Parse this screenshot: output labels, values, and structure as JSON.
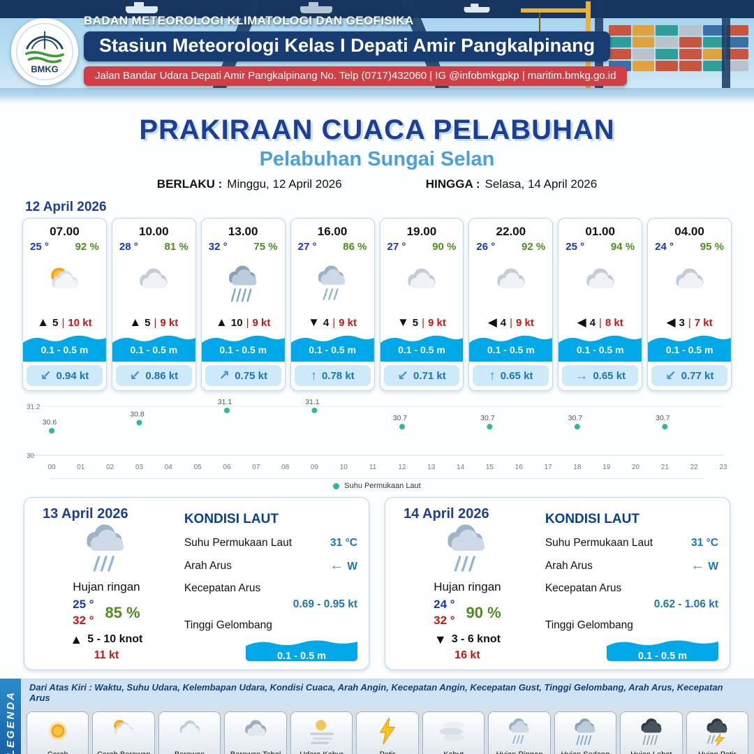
{
  "colors": {
    "navy": "#173c72",
    "titleblue": "#1c3e94",
    "lightblue": "#4aa0dc",
    "red": "#d13f44",
    "green": "#4d8c1f",
    "tempblue": "#1535cc",
    "valred": "#c81414",
    "valblue": "#1b74c0",
    "wave": "#00a8e8",
    "teal": "#2bb9a0"
  },
  "header": {
    "org": "BADAN METEOROLOGI KLIMATOLOGI DAN GEOFISIKA",
    "station": "Stasiun Meteorologi Kelas I Depati Amir Pangkalpinang",
    "address": "Jalan Bandar Udara Depati Amir Pangkalpinang No. Telp (0717)432060 | IG @infobmkgpkp | maritim.bmkg.go.id",
    "logo": "BMKG"
  },
  "title": {
    "main": "PRAKIRAAN CUACA PELABUHAN",
    "subtitle": "Pelabuhan Sungai Selan",
    "berlaku_label": "BERLAKU :",
    "berlaku_value": "Minggu, 12 April 2026",
    "hingga_label": "HINGGA :",
    "hingga_value": "Selasa, 14 April 2026"
  },
  "hourly_date": "12 April 2026",
  "hourly": [
    {
      "time": "07.00",
      "temp": "25 °",
      "rh": "92 %",
      "icon": "cerah-berawan",
      "wind_arrow": "▲",
      "wind": "5",
      "gust": "10 kt",
      "wave": "0.1 - 0.5 m",
      "current_arrow": "↙",
      "current": "0.94 kt"
    },
    {
      "time": "10.00",
      "temp": "28 °",
      "rh": "81 %",
      "icon": "berawan",
      "wind_arrow": "▲",
      "wind": "5",
      "gust": "9 kt",
      "wave": "0.1 - 0.5 m",
      "current_arrow": "↙",
      "current": "0.86 kt"
    },
    {
      "time": "13.00",
      "temp": "32 °",
      "rh": "75 %",
      "icon": "hujan-sedang",
      "wind_arrow": "▲",
      "wind": "10",
      "gust": "9 kt",
      "wave": "0.1 - 0.5 m",
      "current_arrow": "↗",
      "current": "0.75 kt"
    },
    {
      "time": "16.00",
      "temp": "27 °",
      "rh": "86 %",
      "icon": "hujan-ringan",
      "wind_arrow": "▼",
      "wind": "4",
      "gust": "9 kt",
      "wave": "0.1 - 0.5 m",
      "current_arrow": "↑",
      "current": "0.78 kt"
    },
    {
      "time": "19.00",
      "temp": "27 °",
      "rh": "90 %",
      "icon": "berawan",
      "wind_arrow": "▼",
      "wind": "5",
      "gust": "9 kt",
      "wave": "0.1 - 0.5 m",
      "current_arrow": "↙",
      "current": "0.71 kt"
    },
    {
      "time": "22.00",
      "temp": "26 °",
      "rh": "92 %",
      "icon": "berawan",
      "wind_arrow": "◀",
      "wind": "4",
      "gust": "9 kt",
      "wave": "0.1 - 0.5 m",
      "current_arrow": "↑",
      "current": "0.65 kt"
    },
    {
      "time": "01.00",
      "temp": "25 °",
      "rh": "94 %",
      "icon": "berawan",
      "wind_arrow": "◀",
      "wind": "4",
      "gust": "8 kt",
      "wave": "0.1 - 0.5 m",
      "current_arrow": "→",
      "current": "0.65 kt"
    },
    {
      "time": "04.00",
      "temp": "24 °",
      "rh": "95 %",
      "icon": "berawan",
      "wind_arrow": "◀",
      "wind": "3",
      "gust": "7 kt",
      "wave": "0.1 - 0.5 m",
      "current_arrow": "↙",
      "current": "0.77 kt"
    }
  ],
  "chart_data": {
    "type": "scatter",
    "x": [
      0,
      3,
      6,
      9,
      12,
      15,
      18,
      21
    ],
    "values": [
      30.6,
      30.8,
      31.1,
      31.1,
      30.7,
      30.7,
      30.7,
      30.7
    ],
    "x_ticks": [
      "00",
      "01",
      "02",
      "03",
      "04",
      "05",
      "06",
      "07",
      "08",
      "09",
      "10",
      "11",
      "12",
      "13",
      "14",
      "15",
      "16",
      "17",
      "18",
      "19",
      "20",
      "21",
      "22",
      "23"
    ],
    "ylim": [
      30,
      31.2
    ],
    "y_ticks": [
      "31.2",
      "30"
    ],
    "legend": "Suhu Permukaan Laut",
    "legend_position": "bottom",
    "grid": true,
    "point_color": "#2bb9a0",
    "title": "",
    "xlabel": "",
    "ylabel": ""
  },
  "daily": [
    {
      "date": "13 April 2026",
      "icon": "hujan-ringan",
      "desc": "Hujan ringan",
      "tmin": "25 °",
      "tmax": "32 °",
      "rh": "85 %",
      "wind_arrow": "▲",
      "wind": "5  - 10 knot",
      "gust": "11 kt",
      "sea_title": "KONDISI LAUT",
      "sst_label": "Suhu Permukaan Laut",
      "sst": "31 °C",
      "arus_label": "Arah Arus",
      "arus_arrow": "←",
      "arus_dir": "W",
      "kec_label": "Kecepatan Arus",
      "kec": "0.69  - 0.95 kt",
      "gel_label": "Tinggi Gelombang",
      "gel": "0.1 - 0.5 m"
    },
    {
      "date": "14 April 2026",
      "icon": "hujan-ringan",
      "desc": "Hujan ringan",
      "tmin": "24 °",
      "tmax": "32 °",
      "rh": "90 %",
      "wind_arrow": "▼",
      "wind": "3  - 6 knot",
      "gust": "16 kt",
      "sea_title": "KONDISI LAUT",
      "sst_label": "Suhu Permukaan Laut",
      "sst": "31 °C",
      "arus_label": "Arah Arus",
      "arus_arrow": "←",
      "arus_dir": "W",
      "kec_label": "Kecepatan Arus",
      "kec": "0.62  - 1.06 kt",
      "gel_label": "Tinggi Gelombang",
      "gel": "0.1 - 0.5 m"
    }
  ],
  "legend": {
    "title": "LEGENDA",
    "note": "Dari Atas Kiri : Waktu, Suhu Udara, Kelembapan Udara, Kondisi Cuaca, Arah Angin, Kecepatan Angin, Kecepatan Gust, Tinggi Gelombang, Arah Arus, Kecepatan Arus",
    "items": [
      {
        "label": "Cerah",
        "icon": "cerah"
      },
      {
        "label": "Cerah Berawan",
        "icon": "cerah-berawan"
      },
      {
        "label": "Berawan",
        "icon": "berawan"
      },
      {
        "label": "Berawan Tebal",
        "icon": "berawan-tebal"
      },
      {
        "label": "Udara Kabur",
        "icon": "udara-kabur"
      },
      {
        "label": "Petir",
        "icon": "petir"
      },
      {
        "label": "Kabut",
        "icon": "kabut"
      },
      {
        "label": "Hujan Ringan",
        "icon": "hujan-ringan"
      },
      {
        "label": "Hujan Sedang",
        "icon": "hujan-sedang"
      },
      {
        "label": "Hujan Lebat",
        "icon": "hujan-lebat"
      },
      {
        "label": "Hujan Petir",
        "icon": "hujan-petir"
      }
    ]
  }
}
